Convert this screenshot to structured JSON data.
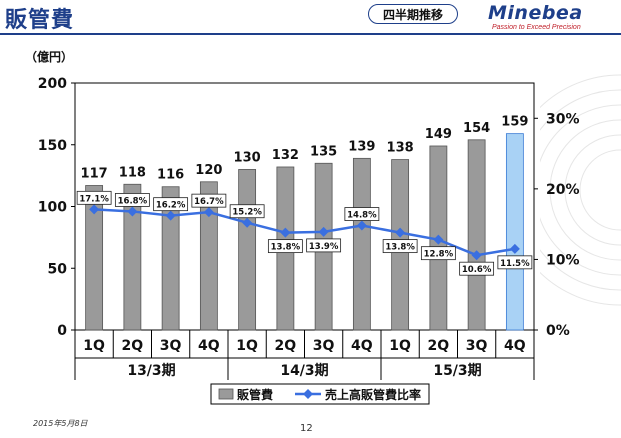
{
  "header": {
    "title": "販管費",
    "badge": "四半期推移",
    "logo_name": "Minebea",
    "logo_tagline": "Passion to Exceed Precision"
  },
  "footer": {
    "date": "2015年5月8日",
    "page_number": "12"
  },
  "colors": {
    "bar": "#9a9a9a",
    "bar_highlight": "#a9d2f5",
    "line": "#3a6fe0",
    "brand": "#1e3f8a"
  },
  "chart_data": {
    "type": "bar",
    "unit_label": "（億円）",
    "categories": [
      "1Q",
      "2Q",
      "3Q",
      "4Q",
      "1Q",
      "2Q",
      "3Q",
      "4Q",
      "1Q",
      "2Q",
      "3Q",
      "4Q"
    ],
    "groups": [
      {
        "label": "13/3期",
        "count": 4
      },
      {
        "label": "14/3期",
        "count": 4
      },
      {
        "label": "15/3期",
        "count": 4
      }
    ],
    "series": [
      {
        "name": "販管費",
        "type": "bar",
        "axis": "left",
        "values": [
          117,
          118,
          116,
          120,
          130,
          132,
          135,
          139,
          138,
          149,
          154,
          159
        ],
        "labels": [
          "117",
          "118",
          "116",
          "120",
          "130",
          "132",
          "135",
          "139",
          "138",
          "149",
          "154",
          "159"
        ],
        "highlight_index": 11
      },
      {
        "name": "売上高販管費比率",
        "type": "line",
        "axis": "right",
        "values": [
          17.1,
          16.8,
          16.2,
          16.7,
          15.2,
          13.8,
          13.9,
          14.8,
          13.8,
          12.8,
          10.6,
          11.5
        ],
        "labels": [
          "17.1%",
          "16.8%",
          "16.2%",
          "16.7%",
          "15.2%",
          "13.8%",
          "13.9%",
          "14.8%",
          "13.8%",
          "12.8%",
          "10.6%",
          "11.5%"
        ]
      }
    ],
    "y_left": {
      "min": 0,
      "max": 200,
      "ticks": [
        "0",
        "50",
        "100",
        "150",
        "200"
      ]
    },
    "y_right": {
      "min": 0,
      "max": 35,
      "ticks": [
        "0%",
        "10%",
        "20%",
        "30%"
      ]
    },
    "legend_position": "bottom"
  }
}
